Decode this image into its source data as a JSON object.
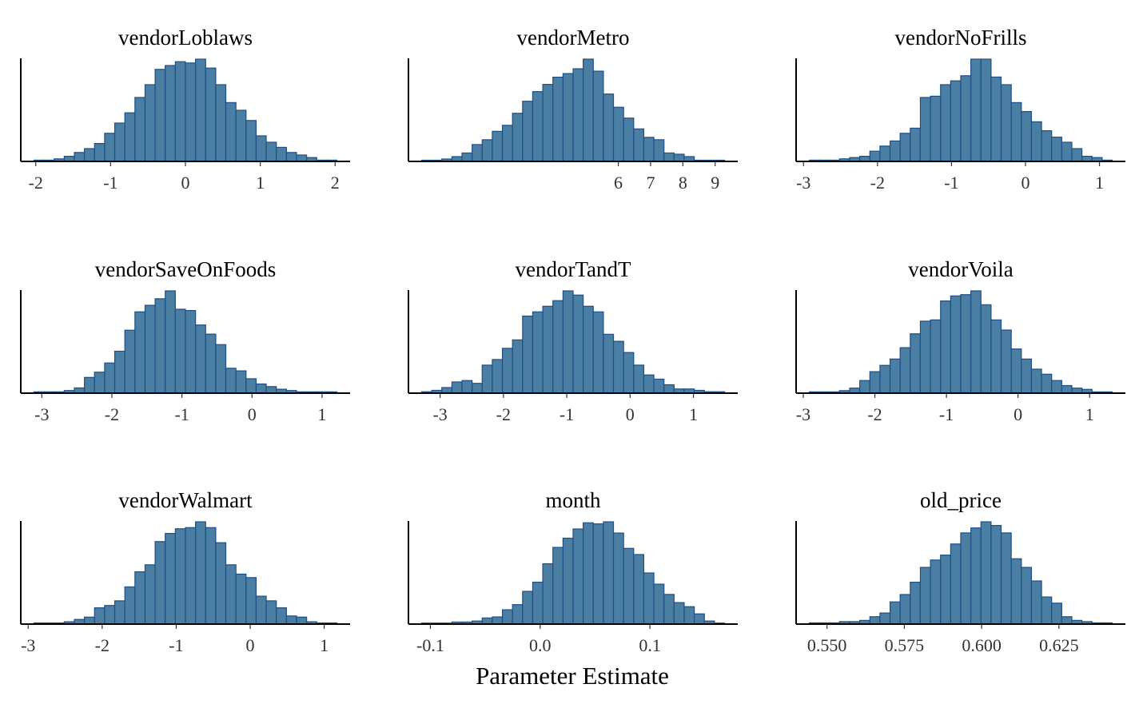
{
  "chart_data": {
    "type": "bar",
    "chart_kind": "faceted histogram",
    "xlabel": "Parameter Estimate",
    "ylabel": "",
    "bar_fill": "#4a7fa3",
    "bar_stroke": "#1f4e85",
    "facets": [
      {
        "title": "vendorLoblaws",
        "bins": 30,
        "xlim": [
          -2.2,
          2.2
        ],
        "ticks": [
          {
            "value": -2,
            "label": "-2"
          },
          {
            "value": -1,
            "label": "-1"
          },
          {
            "value": 0,
            "label": "0"
          },
          {
            "value": 1,
            "label": "1"
          },
          {
            "value": 2,
            "label": "2"
          }
        ],
        "counts": [
          1,
          1,
          2,
          4,
          7,
          10,
          14,
          22,
          30,
          38,
          50,
          60,
          72,
          75,
          78,
          77,
          80,
          73,
          60,
          46,
          40,
          32,
          20,
          15,
          11,
          7,
          5,
          3,
          1,
          1
        ]
      },
      {
        "title": "vendorMetro",
        "bins": 30,
        "xlim": [
          -0.5,
          9.7
        ],
        "ticks": [
          {
            "value": 6,
            "label": "6"
          },
          {
            "value": 7,
            "label": "7"
          },
          {
            "value": 8,
            "label": "8"
          },
          {
            "value": 9,
            "label": "9"
          }
        ],
        "counts": [
          1,
          1,
          2,
          4,
          7,
          14,
          18,
          25,
          30,
          40,
          50,
          58,
          64,
          70,
          73,
          77,
          85,
          75,
          56,
          45,
          36,
          27,
          20,
          18,
          7,
          6,
          4,
          1,
          1,
          1
        ]
      },
      {
        "title": "vendorNoFrills",
        "bins": 30,
        "xlim": [
          -3.1,
          1.35
        ],
        "ticks": [
          {
            "value": -3,
            "label": "-3"
          },
          {
            "value": -2,
            "label": "-2"
          },
          {
            "value": -1,
            "label": "-1"
          },
          {
            "value": 0,
            "label": "0"
          },
          {
            "value": 1,
            "label": "1"
          }
        ],
        "counts": [
          1,
          1,
          1,
          2,
          3,
          4,
          8,
          12,
          16,
          22,
          26,
          50,
          51,
          60,
          63,
          67,
          80,
          80,
          66,
          60,
          46,
          39,
          31,
          24,
          19,
          15,
          10,
          4,
          3,
          1
        ]
      },
      {
        "title": "vendorSaveOnFoods",
        "bins": 30,
        "xlim": [
          -3.3,
          1.4
        ],
        "ticks": [
          {
            "value": -3,
            "label": "-3"
          },
          {
            "value": -2,
            "label": "-2"
          },
          {
            "value": -1,
            "label": "-1"
          },
          {
            "value": 0,
            "label": "0"
          },
          {
            "value": 1,
            "label": "1"
          }
        ],
        "counts": [
          1,
          1,
          1,
          2,
          4,
          12,
          16,
          23,
          32,
          48,
          62,
          67,
          72,
          78,
          64,
          63,
          52,
          45,
          37,
          19,
          17,
          11,
          7,
          5,
          3,
          2,
          1,
          1,
          1,
          1
        ]
      },
      {
        "title": "vendorTandT",
        "bins": 30,
        "xlim": [
          -3.5,
          1.7
        ],
        "ticks": [
          {
            "value": -3,
            "label": "-3"
          },
          {
            "value": -2,
            "label": "-2"
          },
          {
            "value": -1,
            "label": "-1"
          },
          {
            "value": 0,
            "label": "0"
          },
          {
            "value": 1,
            "label": "1"
          }
        ],
        "counts": [
          1,
          2,
          4,
          8,
          9,
          7,
          20,
          24,
          32,
          38,
          55,
          58,
          62,
          66,
          73,
          70,
          62,
          58,
          42,
          37,
          29,
          20,
          13,
          10,
          6,
          3,
          3,
          2,
          1,
          1
        ]
      },
      {
        "title": "vendorVoila",
        "bins": 30,
        "xlim": [
          -3.1,
          1.5
        ],
        "ticks": [
          {
            "value": -3,
            "label": "-3"
          },
          {
            "value": -2,
            "label": "-2"
          },
          {
            "value": -1,
            "label": "-1"
          },
          {
            "value": 0,
            "label": "0"
          },
          {
            "value": 1,
            "label": "1"
          }
        ],
        "counts": [
          1,
          1,
          1,
          2,
          4,
          10,
          17,
          22,
          27,
          36,
          47,
          57,
          58,
          73,
          77,
          78,
          81,
          70,
          58,
          50,
          35,
          27,
          19,
          15,
          10,
          6,
          4,
          3,
          1,
          1
        ]
      },
      {
        "title": "vendorWalmart",
        "bins": 30,
        "xlim": [
          -3.1,
          1.35
        ],
        "ticks": [
          {
            "value": -3,
            "label": "-3"
          },
          {
            "value": -2,
            "label": "-2"
          },
          {
            "value": -1,
            "label": "-1"
          },
          {
            "value": 0,
            "label": "0"
          },
          {
            "value": 1,
            "label": "1"
          }
        ],
        "counts": [
          1,
          1,
          1,
          2,
          4,
          6,
          14,
          16,
          20,
          32,
          45,
          51,
          71,
          78,
          82,
          83,
          88,
          83,
          70,
          51,
          43,
          40,
          24,
          20,
          14,
          7,
          6,
          2,
          1,
          1
        ]
      },
      {
        "title": "month",
        "bins": 30,
        "xlim": [
          -0.12,
          0.18
        ],
        "ticks": [
          {
            "value": -0.1,
            "label": "-0.1"
          },
          {
            "value": 0,
            "label": "0.0"
          },
          {
            "value": 0.1,
            "label": "0.1"
          }
        ],
        "counts": [
          1,
          1,
          1,
          2,
          2,
          3,
          6,
          7,
          14,
          19,
          32,
          41,
          59,
          75,
          84,
          93,
          99,
          98,
          100,
          89,
          74,
          68,
          50,
          39,
          29,
          21,
          17,
          10,
          3,
          1
        ]
      },
      {
        "title": "old_price",
        "bins": 30,
        "xlim": [
          0.54,
          0.6465
        ],
        "ticks": [
          {
            "value": 0.55,
            "label": "0.550"
          },
          {
            "value": 0.575,
            "label": "0.575"
          },
          {
            "value": 0.6,
            "label": "0.600"
          },
          {
            "value": 0.625,
            "label": "0.625"
          }
        ],
        "counts": [
          1,
          1,
          1,
          2,
          2,
          3,
          6,
          9,
          18,
          24,
          34,
          46,
          52,
          56,
          65,
          74,
          78,
          83,
          80,
          74,
          53,
          46,
          35,
          22,
          17,
          6,
          3,
          2,
          1,
          1
        ]
      }
    ]
  }
}
